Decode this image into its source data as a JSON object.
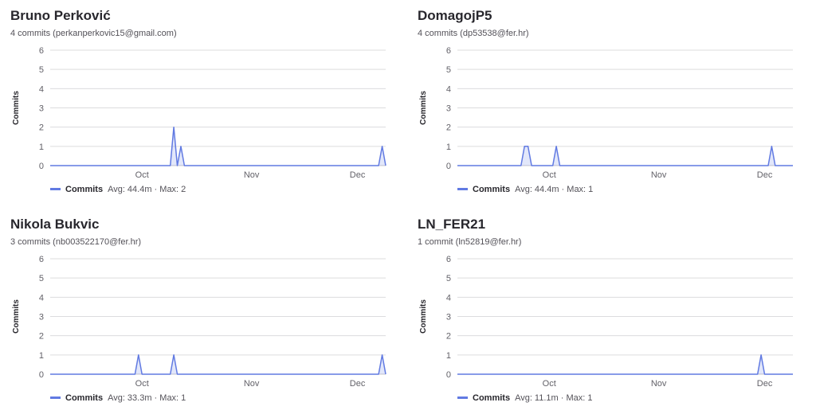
{
  "contributors": [
    {
      "name": "Bruno Perković",
      "commits_text": "4 commits (perkanperkovic15@gmail.com)",
      "legend": {
        "label": "Commits",
        "stats": "Avg: 44.4m · Max: 2"
      }
    },
    {
      "name": "DomagojP5",
      "commits_text": "4 commits (dp53538@fer.hr)",
      "legend": {
        "label": "Commits",
        "stats": "Avg: 44.4m · Max: 1"
      }
    },
    {
      "name": "Nikola Bukvic",
      "commits_text": "3 commits (nb003522170@fer.hr)",
      "legend": {
        "label": "Commits",
        "stats": "Avg: 33.3m · Max: 1"
      }
    },
    {
      "name": "LN_FER21",
      "commits_text": "1 commit (ln52819@fer.hr)",
      "legend": {
        "label": "Commits",
        "stats": "Avg: 11.1m · Max: 1"
      }
    }
  ],
  "chart_data": [
    {
      "type": "area",
      "ylabel": "Commits",
      "ylim": [
        0,
        6
      ],
      "yticks": [
        0,
        1,
        2,
        3,
        4,
        5,
        6
      ],
      "xticks": [
        "Oct",
        "Nov",
        "Dec"
      ],
      "grid": true,
      "color": "#617ae2",
      "series": [
        {
          "name": "Commits",
          "points": [
            [
              "2024-10-15",
              2
            ],
            [
              "2024-10-17",
              1
            ],
            [
              "2024-12-13",
              1
            ]
          ]
        }
      ]
    },
    {
      "type": "area",
      "ylabel": "Commits",
      "ylim": [
        0,
        6
      ],
      "yticks": [
        0,
        1,
        2,
        3,
        4,
        5,
        6
      ],
      "xticks": [
        "Oct",
        "Nov",
        "Dec"
      ],
      "grid": true,
      "color": "#617ae2",
      "series": [
        {
          "name": "Commits",
          "points": [
            [
              "2024-09-29",
              1
            ],
            [
              "2024-09-30",
              1
            ],
            [
              "2024-10-08",
              1
            ],
            [
              "2024-12-08",
              1
            ]
          ]
        }
      ]
    },
    {
      "type": "area",
      "ylabel": "Commits",
      "ylim": [
        0,
        6
      ],
      "yticks": [
        0,
        1,
        2,
        3,
        4,
        5,
        6
      ],
      "xticks": [
        "Oct",
        "Nov",
        "Dec"
      ],
      "grid": true,
      "color": "#617ae2",
      "series": [
        {
          "name": "Commits",
          "points": [
            [
              "2024-10-05",
              1
            ],
            [
              "2024-10-15",
              1
            ],
            [
              "2024-12-13",
              1
            ]
          ]
        }
      ]
    },
    {
      "type": "area",
      "ylabel": "Commits",
      "ylim": [
        0,
        6
      ],
      "yticks": [
        0,
        1,
        2,
        3,
        4,
        5,
        6
      ],
      "xticks": [
        "Oct",
        "Nov",
        "Dec"
      ],
      "grid": true,
      "color": "#617ae2",
      "series": [
        {
          "name": "Commits",
          "points": [
            [
              "2024-12-05",
              1
            ]
          ]
        }
      ]
    }
  ]
}
